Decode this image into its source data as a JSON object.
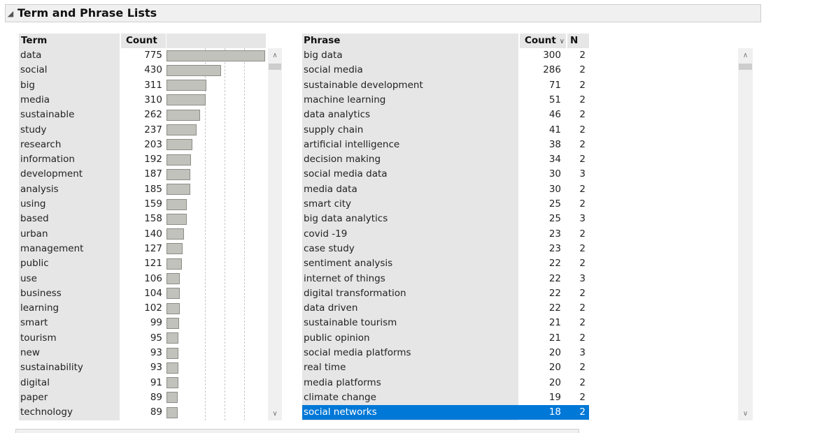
{
  "outline": {
    "title": "Term and Phrase Lists",
    "disclosure_icon": "collapse-triangle-icon"
  },
  "term_table": {
    "headers": {
      "term": "Term",
      "count": "Count"
    },
    "bar_max": 775,
    "rows": [
      {
        "term": "data",
        "count": 775
      },
      {
        "term": "social",
        "count": 430
      },
      {
        "term": "big",
        "count": 311
      },
      {
        "term": "media",
        "count": 310
      },
      {
        "term": "sustainable",
        "count": 262
      },
      {
        "term": "study",
        "count": 237
      },
      {
        "term": "research",
        "count": 203
      },
      {
        "term": "information",
        "count": 192
      },
      {
        "term": "development",
        "count": 187
      },
      {
        "term": "analysis",
        "count": 185
      },
      {
        "term": "using",
        "count": 159
      },
      {
        "term": "based",
        "count": 158
      },
      {
        "term": "urban",
        "count": 140
      },
      {
        "term": "management",
        "count": 127
      },
      {
        "term": "public",
        "count": 121
      },
      {
        "term": "use",
        "count": 106
      },
      {
        "term": "business",
        "count": 104
      },
      {
        "term": "learning",
        "count": 102
      },
      {
        "term": "smart",
        "count": 99
      },
      {
        "term": "tourism",
        "count": 95
      },
      {
        "term": "new",
        "count": 93
      },
      {
        "term": "sustainability",
        "count": 93
      },
      {
        "term": "digital",
        "count": 91
      },
      {
        "term": "paper",
        "count": 89
      },
      {
        "term": "technology",
        "count": 89
      }
    ]
  },
  "phrase_table": {
    "headers": {
      "phrase": "Phrase",
      "count": "Count",
      "sort_icon": "chevron-down-icon",
      "n": "N"
    },
    "selected_index": 24,
    "selection_color": "#0078d7",
    "rows": [
      {
        "phrase": "big data",
        "count": 300,
        "n": 2
      },
      {
        "phrase": "social media",
        "count": 286,
        "n": 2
      },
      {
        "phrase": "sustainable development",
        "count": 71,
        "n": 2
      },
      {
        "phrase": "machine learning",
        "count": 51,
        "n": 2
      },
      {
        "phrase": "data analytics",
        "count": 46,
        "n": 2
      },
      {
        "phrase": "supply chain",
        "count": 41,
        "n": 2
      },
      {
        "phrase": "artificial intelligence",
        "count": 38,
        "n": 2
      },
      {
        "phrase": "decision making",
        "count": 34,
        "n": 2
      },
      {
        "phrase": "social media data",
        "count": 30,
        "n": 3
      },
      {
        "phrase": "media data",
        "count": 30,
        "n": 2
      },
      {
        "phrase": "smart city",
        "count": 25,
        "n": 2
      },
      {
        "phrase": "big data analytics",
        "count": 25,
        "n": 3
      },
      {
        "phrase": "covid -19",
        "count": 23,
        "n": 2
      },
      {
        "phrase": "case study",
        "count": 23,
        "n": 2
      },
      {
        "phrase": "sentiment analysis",
        "count": 22,
        "n": 2
      },
      {
        "phrase": "internet of things",
        "count": 22,
        "n": 3
      },
      {
        "phrase": "digital transformation",
        "count": 22,
        "n": 2
      },
      {
        "phrase": "data driven",
        "count": 22,
        "n": 2
      },
      {
        "phrase": "sustainable tourism",
        "count": 21,
        "n": 2
      },
      {
        "phrase": "public opinion",
        "count": 21,
        "n": 2
      },
      {
        "phrase": "social media platforms",
        "count": 20,
        "n": 3
      },
      {
        "phrase": "real time",
        "count": 20,
        "n": 2
      },
      {
        "phrase": "media platforms",
        "count": 20,
        "n": 2
      },
      {
        "phrase": "climate change",
        "count": 19,
        "n": 2
      },
      {
        "phrase": "social networks",
        "count": 18,
        "n": 2
      }
    ]
  },
  "scroll_icons": {
    "up": "scroll-up-arrow-icon",
    "down": "scroll-down-arrow-icon"
  }
}
